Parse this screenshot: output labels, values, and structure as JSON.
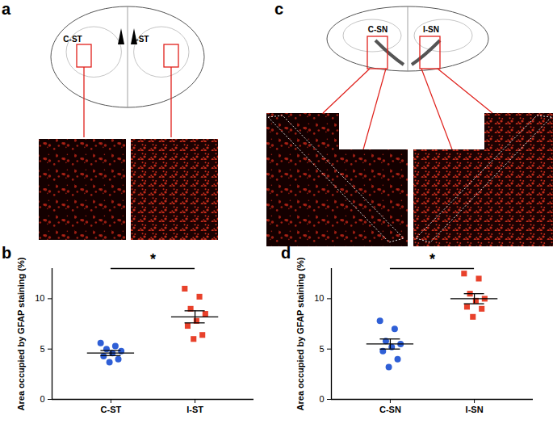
{
  "image_panels": [
    {
      "panel": "a",
      "regions": [
        "C-ST",
        "I-ST"
      ]
    },
    {
      "panel": "c",
      "regions": [
        "C-SN",
        "I-SN"
      ]
    }
  ],
  "chart_data": [
    {
      "type": "scatter",
      "panel": "b",
      "y_label": "Area occupied by GFAP staining (%)",
      "ylim": [
        0,
        13
      ],
      "yticks": [
        0,
        5,
        10
      ],
      "annotation": "*",
      "series": [
        {
          "name": "C-ST",
          "color": "#2f5fd6",
          "marker": "circle",
          "values": [
            5.6,
            5.3,
            5.0,
            4.8,
            4.6,
            4.3,
            4.0,
            3.7
          ],
          "mean": 4.6,
          "error": 0.25
        },
        {
          "name": "I-ST",
          "color": "#e8412b",
          "marker": "square",
          "values": [
            11.0,
            10.2,
            9.0,
            8.5,
            7.8,
            7.3,
            6.4,
            6.0
          ],
          "mean": 8.2,
          "error": 0.6
        }
      ]
    },
    {
      "type": "scatter",
      "panel": "d",
      "y_label": "Area occupied by GFAP staining (%)",
      "ylim": [
        0,
        13
      ],
      "yticks": [
        0,
        5,
        10
      ],
      "annotation": "*",
      "series": [
        {
          "name": "C-SN",
          "color": "#2f5fd6",
          "marker": "circle",
          "values": [
            7.8,
            7.0,
            5.8,
            5.5,
            5.2,
            4.8,
            4.0,
            3.2
          ],
          "mean": 5.5,
          "error": 0.5
        },
        {
          "name": "I-SN",
          "color": "#e8412b",
          "marker": "square",
          "values": [
            12.5,
            12.0,
            10.5,
            10.0,
            9.8,
            9.2,
            9.0,
            8.2
          ],
          "mean": 10.0,
          "error": 0.5
        }
      ]
    }
  ]
}
